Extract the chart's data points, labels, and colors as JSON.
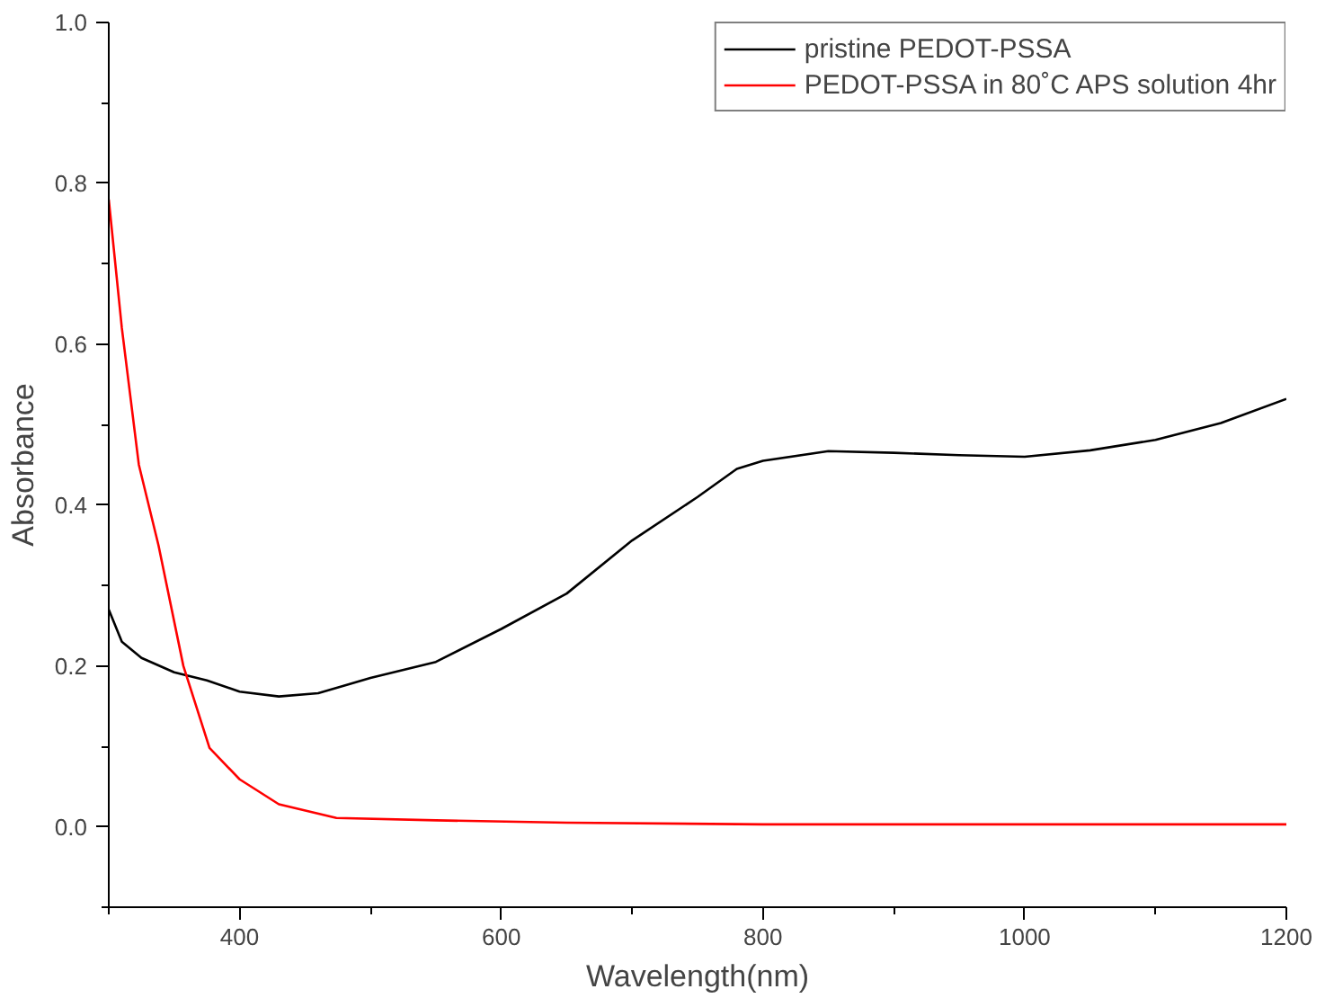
{
  "chart_data": {
    "type": "line",
    "xlabel": "Wavelength(nm)",
    "ylabel": "Absorbance",
    "xlim": [
      300,
      1200
    ],
    "ylim": [
      -0.1,
      1.0
    ],
    "xticks": [
      {
        "value": 300,
        "label": null
      },
      400,
      {
        "value": 500,
        "label": null
      },
      600,
      {
        "value": 700,
        "label": null
      },
      800,
      {
        "value": 900,
        "label": null
      },
      1000,
      {
        "value": 1100,
        "label": null
      },
      1200
    ],
    "yticks": [
      {
        "value": -0.1,
        "label": null
      },
      {
        "value": 0,
        "label": "0.0"
      },
      {
        "value": 0.1,
        "label": null
      },
      0.2,
      {
        "value": 0.3,
        "label": null
      },
      0.4,
      {
        "value": 0.5,
        "label": null
      },
      0.6,
      {
        "value": 0.7,
        "label": null
      },
      0.8,
      {
        "value": 0.9,
        "label": null
      },
      {
        "value": 1.0,
        "label": "1.0"
      }
    ],
    "grid": false,
    "legend": "top right",
    "line_style": "solid",
    "marker": "none",
    "series": [
      {
        "name": "pristine PEDOT-PSSA",
        "color": "#000000",
        "x": [
          300,
          310,
          325,
          350,
          375,
          400,
          430,
          460,
          500,
          550,
          600,
          650,
          700,
          750,
          780,
          800,
          850,
          900,
          950,
          1000,
          1050,
          1100,
          1150,
          1200
        ],
        "values": [
          0.27,
          0.23,
          0.21,
          0.192,
          0.182,
          0.168,
          0.162,
          0.166,
          0.185,
          0.205,
          0.246,
          0.29,
          0.356,
          0.41,
          0.445,
          0.455,
          0.467,
          0.465,
          0.462,
          0.46,
          0.468,
          0.481,
          0.502,
          0.532
        ]
      },
      {
        "name": "PEDOT-PSSA in 80˚C APS solution 4hr",
        "color": "#ff0000",
        "x": [
          300,
          305,
          310,
          323,
          338,
          357,
          377,
          400,
          430,
          474,
          550,
          650,
          800,
          1000,
          1200
        ],
        "values": [
          0.78,
          0.7,
          0.62,
          0.45,
          0.35,
          0.2,
          0.098,
          0.059,
          0.028,
          0.011,
          0.008,
          0.005,
          0.003,
          0.003,
          0.003
        ]
      }
    ]
  }
}
